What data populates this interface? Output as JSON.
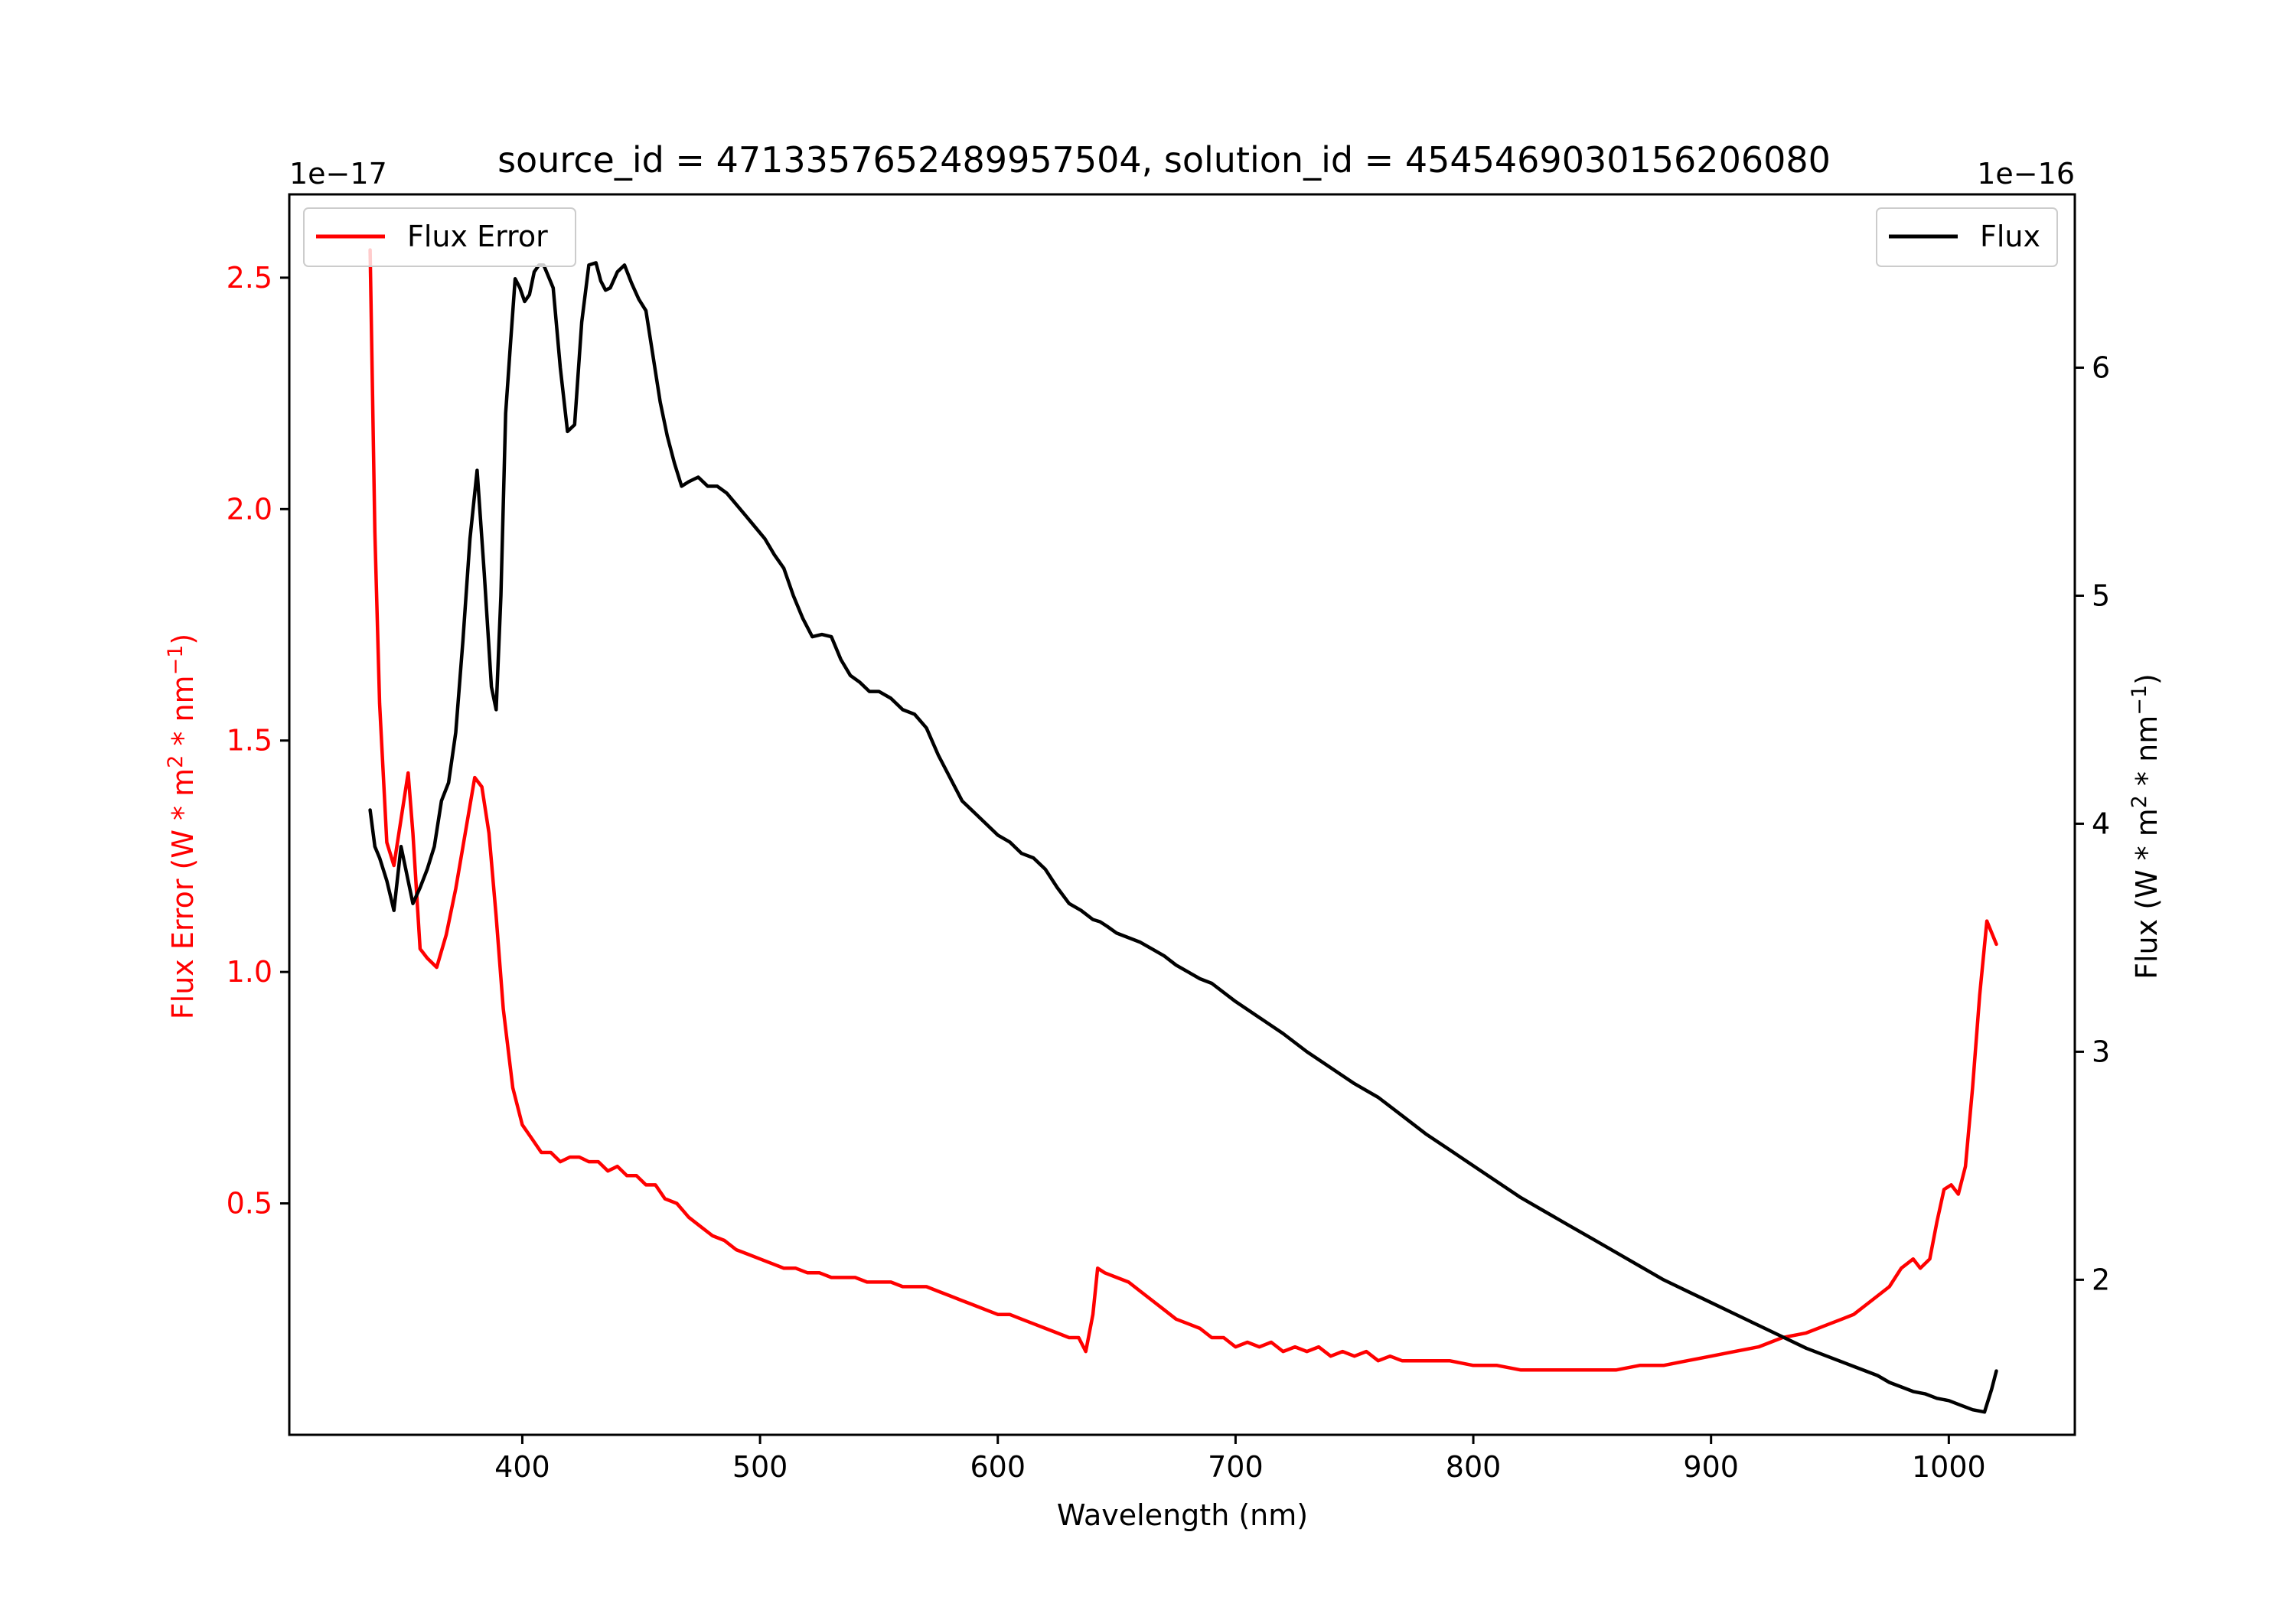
{
  "chart_data": {
    "type": "line",
    "title": "source_id = 4713357652489957504, solution_id = 4545469030156206080",
    "xlabel": "Wavelength (nm)",
    "ylabel_left": {
      "prefix": "Flux Error (W * m",
      "sup1": "2",
      "mid": " * nm",
      "sup2": "−1",
      "suffix": ")"
    },
    "ylabel_right": {
      "prefix": "Flux (W * m",
      "sup1": "2",
      "mid": " * nm",
      "sup2": "−1",
      "suffix": ")"
    },
    "left_offset_text": "1e−17",
    "right_offset_text": "1e−16",
    "xlim": [
      302,
      1053
    ],
    "ylim_left": [
      0.0,
      2.68
    ],
    "ylim_right": [
      1.32,
      6.76
    ],
    "xticks": [
      400,
      500,
      600,
      700,
      800,
      900,
      1000
    ],
    "xtick_labels": [
      "400",
      "500",
      "600",
      "700",
      "800",
      "900",
      "1000"
    ],
    "yticks_left": [
      0.5,
      1.0,
      1.5,
      2.0,
      2.5
    ],
    "ytick_labels_left": [
      "0.5",
      "1.0",
      "1.5",
      "2.0",
      "2.5"
    ],
    "yticks_right": [
      2,
      3,
      4,
      5,
      6
    ],
    "ytick_labels_right": [
      "2",
      "3",
      "4",
      "5",
      "6"
    ],
    "grid": false,
    "legends": [
      {
        "name": "Flux Error",
        "placement": "top-left",
        "color": "#ff0000"
      },
      {
        "name": "Flux",
        "placement": "top-right",
        "color": "#000000"
      }
    ],
    "series": [
      {
        "name": "Flux Error",
        "axis": "left",
        "color": "#ff0000",
        "x": [
          336,
          338,
          340,
          343,
          346,
          349,
          352,
          354,
          357,
          360,
          364,
          368,
          372,
          376,
          380,
          383,
          386,
          389,
          392,
          396,
          400,
          404,
          408,
          412,
          416,
          420,
          424,
          428,
          432,
          436,
          440,
          444,
          448,
          452,
          456,
          460,
          465,
          470,
          475,
          480,
          485,
          490,
          495,
          500,
          505,
          510,
          515,
          520,
          525,
          530,
          535,
          540,
          545,
          550,
          555,
          560,
          565,
          570,
          575,
          580,
          585,
          590,
          595,
          600,
          605,
          610,
          615,
          620,
          625,
          630,
          634,
          637,
          640,
          642,
          645,
          650,
          655,
          660,
          665,
          670,
          675,
          680,
          685,
          690,
          695,
          700,
          705,
          710,
          715,
          720,
          725,
          730,
          735,
          740,
          745,
          750,
          755,
          760,
          765,
          770,
          780,
          790,
          800,
          810,
          820,
          830,
          840,
          850,
          860,
          870,
          880,
          890,
          900,
          910,
          920,
          930,
          940,
          950,
          955,
          960,
          965,
          970,
          975,
          980,
          985,
          988,
          992,
          995,
          998,
          1001,
          1004,
          1007,
          1010,
          1013,
          1016,
          1020
        ],
        "values": [
          2.56,
          1.95,
          1.58,
          1.28,
          1.23,
          1.33,
          1.43,
          1.3,
          1.05,
          1.03,
          1.01,
          1.08,
          1.18,
          1.3,
          1.42,
          1.4,
          1.3,
          1.12,
          0.92,
          0.75,
          0.67,
          0.64,
          0.61,
          0.61,
          0.59,
          0.6,
          0.6,
          0.59,
          0.59,
          0.57,
          0.58,
          0.56,
          0.56,
          0.54,
          0.54,
          0.51,
          0.5,
          0.47,
          0.45,
          0.43,
          0.42,
          0.4,
          0.39,
          0.38,
          0.37,
          0.36,
          0.36,
          0.35,
          0.35,
          0.34,
          0.34,
          0.34,
          0.33,
          0.33,
          0.33,
          0.32,
          0.32,
          0.32,
          0.31,
          0.3,
          0.29,
          0.28,
          0.27,
          0.26,
          0.26,
          0.25,
          0.24,
          0.23,
          0.22,
          0.21,
          0.21,
          0.18,
          0.26,
          0.36,
          0.35,
          0.34,
          0.33,
          0.31,
          0.29,
          0.27,
          0.25,
          0.24,
          0.23,
          0.21,
          0.21,
          0.19,
          0.2,
          0.19,
          0.2,
          0.18,
          0.19,
          0.18,
          0.19,
          0.17,
          0.18,
          0.17,
          0.18,
          0.16,
          0.17,
          0.16,
          0.16,
          0.16,
          0.15,
          0.15,
          0.14,
          0.14,
          0.14,
          0.14,
          0.14,
          0.15,
          0.15,
          0.16,
          0.17,
          0.18,
          0.19,
          0.21,
          0.22,
          0.24,
          0.25,
          0.26,
          0.28,
          0.3,
          0.32,
          0.36,
          0.38,
          0.36,
          0.38,
          0.46,
          0.53,
          0.54,
          0.52,
          0.58,
          0.75,
          0.95,
          1.11,
          1.06
        ]
      },
      {
        "name": "Flux",
        "axis": "right",
        "color": "#000000",
        "x": [
          336,
          338,
          340,
          343,
          346,
          349,
          352,
          354,
          357,
          360,
          363,
          366,
          369,
          372,
          375,
          378,
          381,
          384,
          387,
          389,
          391,
          393,
          395,
          397,
          399,
          401,
          403,
          405,
          407,
          409,
          411,
          413,
          416,
          419,
          422,
          425,
          428,
          431,
          433,
          435,
          437,
          440,
          443,
          446,
          449,
          452,
          455,
          458,
          461,
          464,
          467,
          470,
          474,
          478,
          482,
          486,
          490,
          494,
          498,
          502,
          506,
          510,
          514,
          518,
          522,
          526,
          530,
          534,
          538,
          542,
          546,
          550,
          555,
          560,
          565,
          570,
          575,
          580,
          585,
          590,
          595,
          600,
          605,
          610,
          615,
          620,
          625,
          630,
          635,
          640,
          643,
          646,
          650,
          655,
          660,
          665,
          670,
          675,
          680,
          685,
          690,
          700,
          710,
          720,
          730,
          740,
          750,
          760,
          770,
          780,
          790,
          800,
          810,
          820,
          830,
          840,
          850,
          860,
          870,
          880,
          890,
          900,
          910,
          920,
          930,
          940,
          950,
          960,
          970,
          975,
          980,
          985,
          990,
          995,
          1000,
          1005,
          1010,
          1015,
          1018,
          1020
        ],
        "values": [
          4.06,
          3.9,
          3.85,
          3.75,
          3.62,
          3.9,
          3.75,
          3.65,
          3.72,
          3.8,
          3.9,
          4.1,
          4.18,
          4.4,
          4.8,
          5.25,
          5.55,
          5.1,
          4.6,
          4.5,
          5.0,
          5.8,
          6.1,
          6.39,
          6.35,
          6.29,
          6.32,
          6.42,
          6.45,
          6.45,
          6.4,
          6.35,
          6.0,
          5.72,
          5.75,
          6.2,
          6.45,
          6.46,
          6.38,
          6.34,
          6.35,
          6.42,
          6.45,
          6.37,
          6.3,
          6.25,
          6.05,
          5.85,
          5.7,
          5.58,
          5.48,
          5.5,
          5.52,
          5.48,
          5.48,
          5.45,
          5.4,
          5.35,
          5.3,
          5.25,
          5.18,
          5.12,
          5.0,
          4.9,
          4.82,
          4.83,
          4.82,
          4.72,
          4.65,
          4.62,
          4.58,
          4.58,
          4.55,
          4.5,
          4.48,
          4.42,
          4.3,
          4.2,
          4.1,
          4.05,
          4.0,
          3.95,
          3.92,
          3.87,
          3.85,
          3.8,
          3.72,
          3.65,
          3.62,
          3.58,
          3.57,
          3.55,
          3.52,
          3.5,
          3.48,
          3.45,
          3.42,
          3.38,
          3.35,
          3.32,
          3.3,
          3.22,
          3.15,
          3.08,
          3.0,
          2.93,
          2.86,
          2.8,
          2.72,
          2.64,
          2.57,
          2.5,
          2.43,
          2.36,
          2.3,
          2.24,
          2.18,
          2.12,
          2.06,
          2.0,
          1.95,
          1.9,
          1.85,
          1.8,
          1.75,
          1.7,
          1.66,
          1.62,
          1.58,
          1.55,
          1.53,
          1.51,
          1.5,
          1.48,
          1.47,
          1.45,
          1.43,
          1.42,
          1.52,
          1.6
        ]
      }
    ]
  }
}
